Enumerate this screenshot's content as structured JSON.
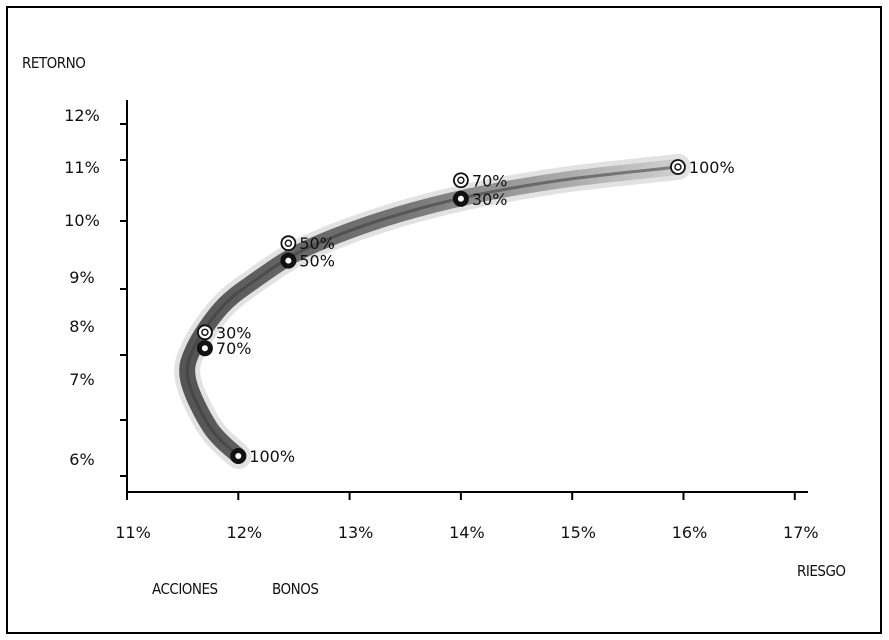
{
  "chart_data": {
    "type": "line",
    "ylabel": "RETORNO",
    "xlabel": "RIESGO",
    "x_ticks": [
      11,
      12,
      13,
      14,
      15,
      16,
      17
    ],
    "x_tick_labels": [
      "11%",
      "12%",
      "13%",
      "14%",
      "15%",
      "16%",
      "17%"
    ],
    "y_tick_labels": [
      "12%",
      "11%",
      "10%",
      "9%",
      "8%",
      "7%",
      "6%"
    ],
    "xlim": [
      11,
      17
    ],
    "ylim": [
      5.75,
      12.5
    ],
    "legend": [
      "ACCIONES",
      "BONOS"
    ],
    "frontier": [
      {
        "x": 12.0,
        "y": 6.05
      },
      {
        "x": 11.75,
        "y": 6.4
      },
      {
        "x": 11.55,
        "y": 7.0
      },
      {
        "x": 11.6,
        "y": 7.6
      },
      {
        "x": 11.85,
        "y": 8.4
      },
      {
        "x": 12.15,
        "y": 8.95
      },
      {
        "x": 12.55,
        "y": 9.45
      },
      {
        "x": 13.05,
        "y": 9.85
      },
      {
        "x": 13.6,
        "y": 10.2
      },
      {
        "x": 14.2,
        "y": 10.5
      },
      {
        "x": 14.9,
        "y": 10.75
      },
      {
        "x": 15.5,
        "y": 10.9
      },
      {
        "x": 15.95,
        "y": 11.0
      }
    ],
    "points": [
      {
        "series": "ACCIONES",
        "x": 15.95,
        "y": 11.0,
        "label": "100%"
      },
      {
        "series": "ACCIONES",
        "x": 14.0,
        "y": 10.75,
        "label": "70%"
      },
      {
        "series": "ACCIONES",
        "x": 12.45,
        "y": 9.6,
        "label": "50%"
      },
      {
        "series": "ACCIONES",
        "x": 11.7,
        "y": 7.9,
        "label": "30%"
      },
      {
        "series": "BONOS",
        "x": 14.0,
        "y": 10.4,
        "label": "30%"
      },
      {
        "series": "BONOS",
        "x": 12.45,
        "y": 9.3,
        "label": "50%"
      },
      {
        "series": "BONOS",
        "x": 11.7,
        "y": 7.6,
        "label": "70%"
      },
      {
        "series": "BONOS",
        "x": 12.0,
        "y": 6.05,
        "label": "100%"
      }
    ]
  }
}
